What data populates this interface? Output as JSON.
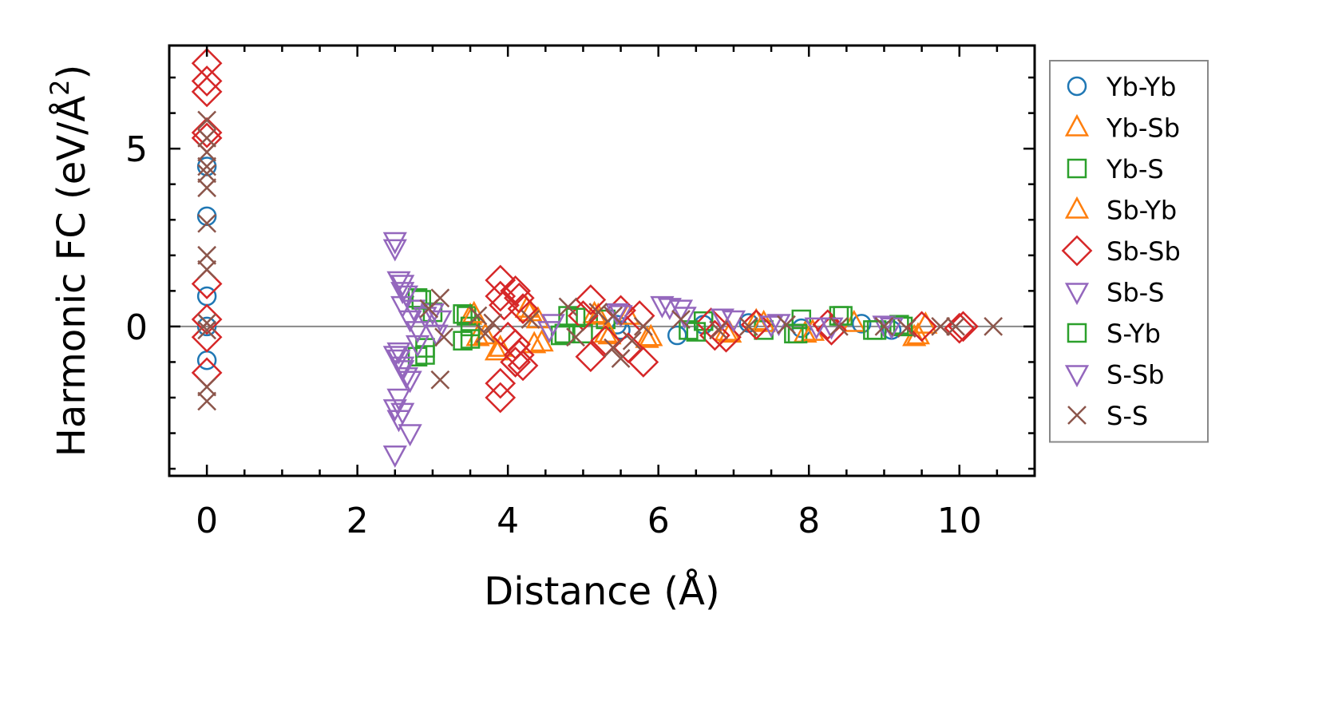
{
  "chart_data": {
    "type": "scatter",
    "title": "",
    "xlabel": "Distance (Å)",
    "ylabel_main": "Harmonic FC (eV/Å",
    "ylabel_sup": "2",
    "ylabel_end": ")",
    "xlim": [
      -0.5,
      11
    ],
    "ylim": [
      -4.2,
      7.9
    ],
    "xticks": [
      0,
      2,
      4,
      6,
      8,
      10
    ],
    "xtick_labels": [
      "0",
      "2",
      "4",
      "6",
      "8",
      "10"
    ],
    "yticks": [
      0,
      5
    ],
    "ytick_labels": [
      "0",
      "5"
    ],
    "zero_line": true,
    "grid": false,
    "legend_position": "outside right",
    "series": [
      {
        "name": "Yb-Yb",
        "color": "#1f77b4",
        "marker": "circle",
        "points": [
          [
            0,
            4.5
          ],
          [
            0,
            3.1
          ],
          [
            0,
            0.85
          ],
          [
            0,
            -0.95
          ],
          [
            0,
            0.0
          ],
          [
            5.45,
            0.05
          ],
          [
            5.5,
            -0.1
          ],
          [
            6.25,
            -0.25
          ],
          [
            6.6,
            0.05
          ],
          [
            7.2,
            0.1
          ],
          [
            7.9,
            -0.05
          ],
          [
            8.7,
            0.08
          ],
          [
            9.1,
            -0.1
          ]
        ]
      },
      {
        "name": "Yb-Sb",
        "color": "#ff7f0e",
        "marker": "triangle-up",
        "points": [
          [
            3.5,
            0.3
          ],
          [
            3.6,
            -0.3
          ],
          [
            3.85,
            -0.7
          ],
          [
            4.3,
            0.4
          ],
          [
            4.35,
            -0.5
          ],
          [
            4.4,
            0.2
          ],
          [
            5.2,
            0.3
          ],
          [
            5.3,
            -0.2
          ],
          [
            5.85,
            -0.35
          ],
          [
            5.6,
            0.3
          ],
          [
            6.95,
            -0.2
          ],
          [
            7.3,
            0.15
          ],
          [
            7.95,
            -0.2
          ],
          [
            8.6,
            0.1
          ],
          [
            9.4,
            -0.3
          ],
          [
            9.55,
            0.05
          ]
        ]
      },
      {
        "name": "Yb-S",
        "color": "#2ca02c",
        "marker": "square",
        "points": [
          [
            2.8,
            0.8
          ],
          [
            2.8,
            -0.85
          ],
          [
            2.9,
            -0.6
          ],
          [
            3.0,
            0.4
          ],
          [
            3.4,
            -0.4
          ],
          [
            3.45,
            0.3
          ],
          [
            3.5,
            0.0
          ],
          [
            4.7,
            -0.25
          ],
          [
            4.8,
            0.3
          ],
          [
            5.0,
            -0.2
          ],
          [
            5.3,
            0.2
          ],
          [
            6.4,
            -0.1
          ],
          [
            6.6,
            0.15
          ],
          [
            7.4,
            -0.1
          ],
          [
            7.85,
            -0.2
          ],
          [
            7.9,
            0.2
          ],
          [
            8.4,
            0.3
          ],
          [
            8.85,
            -0.1
          ],
          [
            9.2,
            0.05
          ]
        ]
      },
      {
        "name": "Sb-Yb",
        "color": "#ff7f0e",
        "marker": "triangle-up",
        "points": [
          [
            3.55,
            0.35
          ],
          [
            3.7,
            -0.25
          ],
          [
            3.9,
            -0.6
          ],
          [
            4.25,
            0.5
          ],
          [
            4.45,
            -0.45
          ],
          [
            5.15,
            0.35
          ],
          [
            5.35,
            -0.25
          ],
          [
            5.9,
            -0.3
          ],
          [
            6.9,
            -0.15
          ],
          [
            7.4,
            0.1
          ],
          [
            8.05,
            -0.15
          ],
          [
            9.45,
            -0.25
          ]
        ]
      },
      {
        "name": "Sb-Sb",
        "color": "#d62728",
        "marker": "diamond",
        "points": [
          [
            0,
            7.4
          ],
          [
            0,
            6.9
          ],
          [
            0,
            6.6
          ],
          [
            0,
            5.45
          ],
          [
            0,
            5.3
          ],
          [
            0,
            1.2
          ],
          [
            0,
            0.2
          ],
          [
            0,
            -0.3
          ],
          [
            0,
            -1.3
          ],
          [
            3.9,
            1.3
          ],
          [
            3.9,
            0.85
          ],
          [
            3.95,
            0.6
          ],
          [
            4.1,
            1.0
          ],
          [
            4.15,
            0.8
          ],
          [
            4.2,
            0.5
          ],
          [
            4.1,
            -0.5
          ],
          [
            4.15,
            -0.8
          ],
          [
            4.2,
            -1.1
          ],
          [
            4.1,
            -1.0
          ],
          [
            3.9,
            -1.6
          ],
          [
            3.9,
            -2.0
          ],
          [
            4.0,
            -0.3
          ],
          [
            5.1,
            0.75
          ],
          [
            5.1,
            -0.85
          ],
          [
            5.0,
            0.3
          ],
          [
            5.3,
            -0.4
          ],
          [
            5.5,
            0.45
          ],
          [
            5.6,
            -0.6
          ],
          [
            5.8,
            -1.0
          ],
          [
            5.75,
            0.3
          ],
          [
            6.7,
            0.1
          ],
          [
            6.75,
            -0.25
          ],
          [
            6.9,
            -0.3
          ],
          [
            7.3,
            0.05
          ],
          [
            8.25,
            0.05
          ],
          [
            8.3,
            -0.1
          ],
          [
            9.5,
            0.0
          ],
          [
            10.05,
            0.0
          ],
          [
            10.0,
            -0.05
          ]
        ]
      },
      {
        "name": "Sb-S",
        "color": "#9467bd",
        "marker": "triangle-down",
        "points": [
          [
            2.5,
            2.4
          ],
          [
            2.55,
            1.3
          ],
          [
            2.6,
            1.0
          ],
          [
            2.6,
            0.6
          ],
          [
            2.7,
            0.2
          ],
          [
            2.5,
            -0.8
          ],
          [
            2.6,
            -1.2
          ],
          [
            2.55,
            -0.9
          ],
          [
            2.65,
            -1.4
          ],
          [
            2.5,
            -2.3
          ],
          [
            2.55,
            -2.6
          ],
          [
            2.7,
            -3.0
          ],
          [
            2.5,
            -3.6
          ],
          [
            3.0,
            0.4
          ],
          [
            3.1,
            0.2
          ],
          [
            4.6,
            0.1
          ],
          [
            5.5,
            0.35
          ],
          [
            6.05,
            0.6
          ],
          [
            6.3,
            0.5
          ],
          [
            6.85,
            0.25
          ],
          [
            7.6,
            0.1
          ],
          [
            8.1,
            0.0
          ],
          [
            9.0,
            0.05
          ]
        ]
      },
      {
        "name": "S-Yb",
        "color": "#2ca02c",
        "marker": "square",
        "points": [
          [
            2.85,
            0.75
          ],
          [
            2.9,
            -0.8
          ],
          [
            3.4,
            0.35
          ],
          [
            3.5,
            -0.35
          ],
          [
            4.75,
            -0.2
          ],
          [
            4.9,
            0.25
          ],
          [
            6.5,
            -0.15
          ],
          [
            7.8,
            -0.2
          ],
          [
            8.45,
            0.3
          ],
          [
            8.9,
            -0.1
          ],
          [
            9.25,
            0.0
          ]
        ]
      },
      {
        "name": "S-Sb",
        "color": "#9467bd",
        "marker": "triangle-down",
        "points": [
          [
            2.5,
            2.2
          ],
          [
            2.6,
            1.2
          ],
          [
            2.65,
            0.9
          ],
          [
            2.75,
            0.5
          ],
          [
            2.8,
            -0.1
          ],
          [
            2.55,
            -0.7
          ],
          [
            2.6,
            -1.1
          ],
          [
            2.7,
            -1.5
          ],
          [
            2.55,
            -2.0
          ],
          [
            2.6,
            -2.4
          ],
          [
            2.8,
            -0.5
          ],
          [
            2.9,
            0.3
          ],
          [
            3.05,
            -0.2
          ],
          [
            4.55,
            -0.1
          ],
          [
            5.45,
            0.4
          ],
          [
            6.15,
            0.55
          ],
          [
            6.35,
            0.3
          ],
          [
            7.0,
            0.2
          ],
          [
            7.5,
            0.05
          ],
          [
            8.3,
            0.0
          ],
          [
            9.1,
            0.0
          ]
        ]
      },
      {
        "name": "S-S",
        "color": "#8c564b",
        "marker": "x",
        "points": [
          [
            0,
            5.8
          ],
          [
            0,
            5.3
          ],
          [
            0,
            4.9
          ],
          [
            0,
            4.5
          ],
          [
            0,
            4.3
          ],
          [
            0,
            3.9
          ],
          [
            0,
            2.9
          ],
          [
            0,
            2.0
          ],
          [
            0,
            1.6
          ],
          [
            0,
            0.1
          ],
          [
            0,
            -0.1
          ],
          [
            0,
            -1.7
          ],
          [
            0,
            -2.1
          ],
          [
            2.95,
            0.5
          ],
          [
            3.1,
            0.8
          ],
          [
            3.15,
            -0.3
          ],
          [
            3.1,
            -1.5
          ],
          [
            3.6,
            0.3
          ],
          [
            3.7,
            -0.2
          ],
          [
            3.8,
            0.1
          ],
          [
            4.3,
            0.2
          ],
          [
            4.8,
            0.55
          ],
          [
            4.9,
            -0.3
          ],
          [
            5.2,
            0.4
          ],
          [
            5.4,
            0.3
          ],
          [
            5.4,
            -0.6
          ],
          [
            5.5,
            -0.9
          ],
          [
            5.65,
            -0.4
          ],
          [
            5.8,
            0.0
          ],
          [
            6.3,
            0.2
          ],
          [
            6.8,
            -0.1
          ],
          [
            7.2,
            0.0
          ],
          [
            7.7,
            0.05
          ],
          [
            8.4,
            0.0
          ],
          [
            9.0,
            0.0
          ],
          [
            9.3,
            -0.05
          ],
          [
            9.75,
            0.0
          ],
          [
            9.95,
            0.0
          ],
          [
            10.45,
            0.0
          ]
        ]
      }
    ]
  }
}
